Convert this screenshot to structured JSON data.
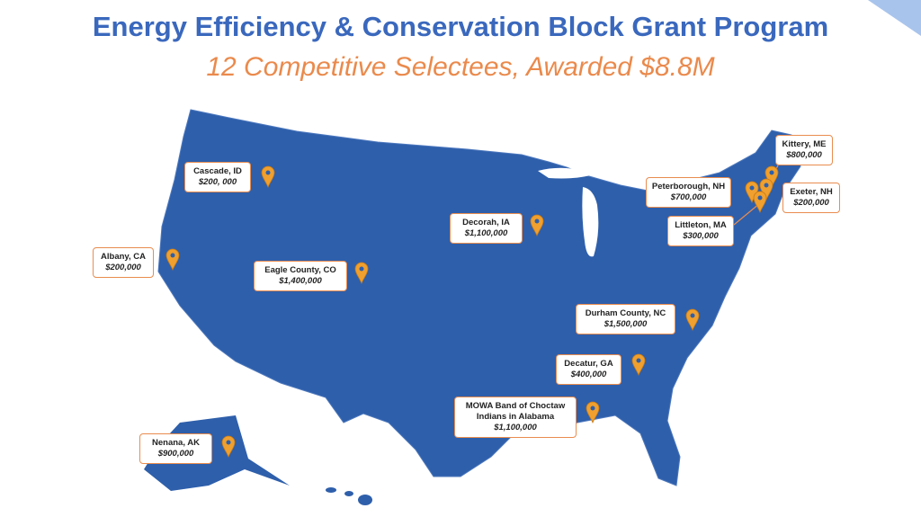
{
  "header": {
    "title": "Energy Efficiency & Conservation Block Grant Program",
    "subtitle": "12 Competitive Selectees, Awarded $8.8M"
  },
  "selectees": [
    {
      "name": "Cascade, ID",
      "award": "$200, 000"
    },
    {
      "name": "Albany, CA",
      "award": "$200,000"
    },
    {
      "name": "Eagle County, CO",
      "award": "$1,400,000"
    },
    {
      "name": "Decorah, IA",
      "award": "$1,100,000"
    },
    {
      "name": "Kittery, ME",
      "award": "$800,000"
    },
    {
      "name": "Peterborough, NH",
      "award": "$700,000"
    },
    {
      "name": "Exeter, NH",
      "award": "$200,000"
    },
    {
      "name": "Littleton, MA",
      "award": "$300,000"
    },
    {
      "name": "Durham County, NC",
      "award": "$1,500,000"
    },
    {
      "name": "Decatur, GA",
      "award": "$400,000"
    },
    {
      "name": "MOWA Band of Choctaw Indians in Alabama",
      "award": "$1,100,000"
    },
    {
      "name": "Nenana, AK",
      "award": "$900,000"
    }
  ]
}
